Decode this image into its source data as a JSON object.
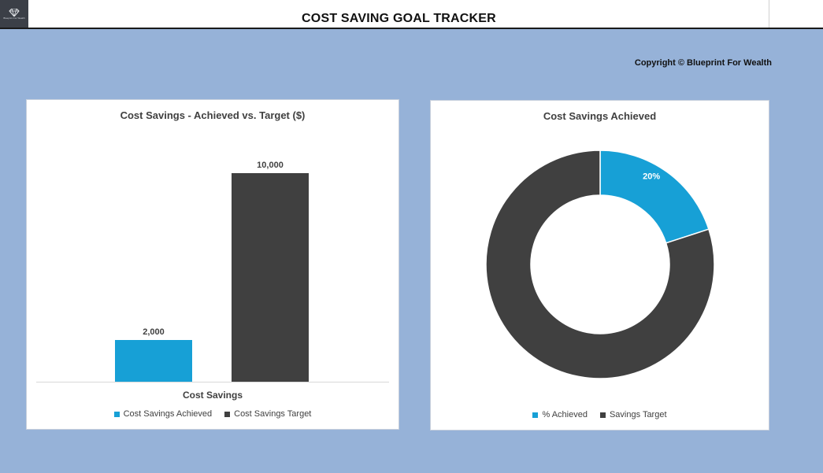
{
  "header": {
    "logo_text": "Blueprint For Wealth",
    "title": "COST SAVING GOAL TRACKER"
  },
  "copyright": "Copyright © Blueprint For Wealth",
  "colors": {
    "achieved": "#17a0d6",
    "target": "#404040",
    "background": "#96b2d8"
  },
  "chart_data": [
    {
      "type": "bar",
      "title": "Cost Savings - Achieved vs. Target ($)",
      "categories": [
        "Cost Savings"
      ],
      "xlabel": "Cost Savings",
      "series": [
        {
          "name": "Cost Savings Achieved",
          "values": [
            2000
          ],
          "label": "2,000",
          "color": "#17a0d6"
        },
        {
          "name": "Cost Savings Target",
          "values": [
            10000
          ],
          "label": "10,000",
          "color": "#404040"
        }
      ],
      "ylim": [
        0,
        12000
      ],
      "grid": false,
      "legend": "bottom"
    },
    {
      "type": "pie",
      "title": "Cost Savings Achieved",
      "donut": true,
      "slices": [
        {
          "name": "% Achieved",
          "value": 20,
          "label": "20%",
          "color": "#17a0d6"
        },
        {
          "name": "Savings Target",
          "value": 80,
          "label": "",
          "color": "#404040"
        }
      ],
      "legend": "bottom"
    }
  ]
}
